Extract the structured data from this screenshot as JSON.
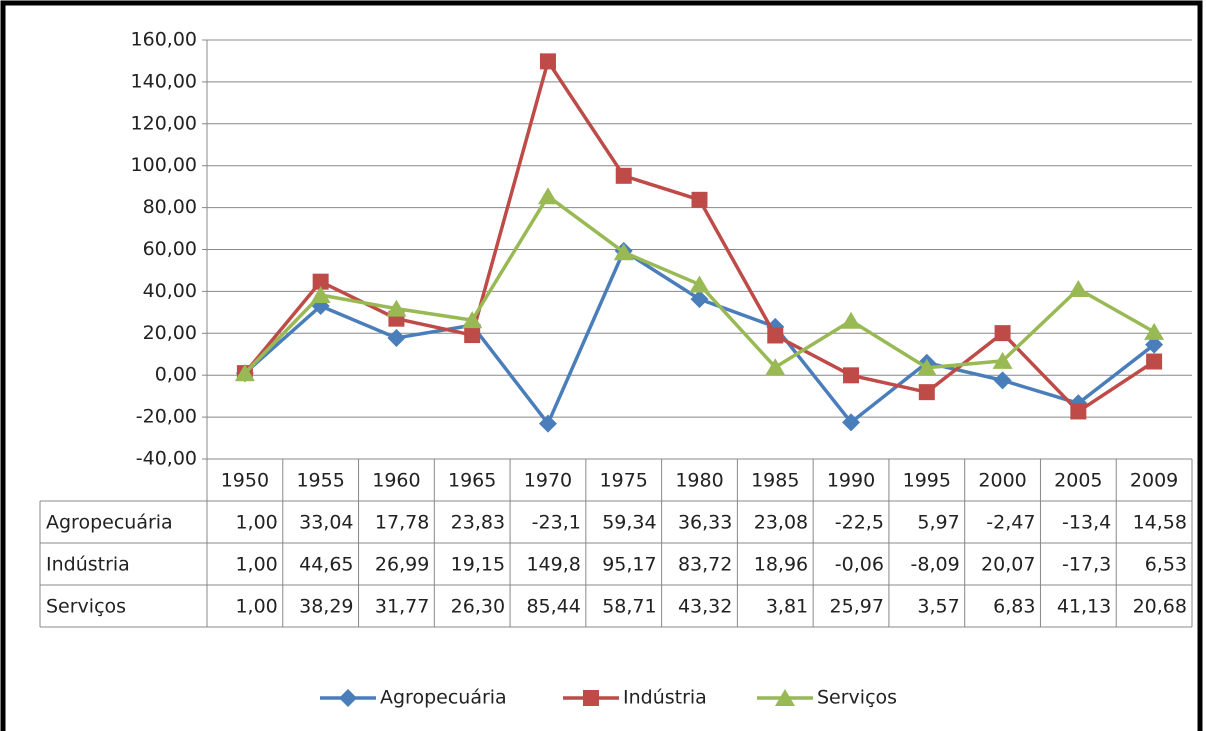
{
  "chart_data": {
    "type": "line",
    "categories": [
      "1950",
      "1955",
      "1960",
      "1965",
      "1970",
      "1975",
      "1980",
      "1985",
      "1990",
      "1995",
      "2000",
      "2005",
      "2009"
    ],
    "series": [
      {
        "name": "Agropecuária",
        "color": "#4a7ebb",
        "marker": "diamond",
        "values": [
          1.0,
          33.04,
          17.78,
          23.83,
          -23.1,
          59.34,
          36.33,
          23.08,
          -22.5,
          5.97,
          -2.47,
          -13.4,
          14.58
        ],
        "value_labels": [
          "1,00",
          "33,04",
          "17,78",
          "23,83",
          "-23,1",
          "59,34",
          "36,33",
          "23,08",
          "-22,5",
          "5,97",
          "-2,47",
          "-13,4",
          "14,58"
        ]
      },
      {
        "name": "Indústria",
        "color": "#be4b48",
        "marker": "square",
        "values": [
          1.0,
          44.65,
          26.99,
          19.15,
          149.8,
          95.17,
          83.72,
          18.96,
          -0.06,
          -8.09,
          20.07,
          -17.3,
          6.53
        ],
        "value_labels": [
          "1,00",
          "44,65",
          "26,99",
          "19,15",
          "149,8",
          "95,17",
          "83,72",
          "18,96",
          "-0,06",
          "-8,09",
          "20,07",
          "-17,3",
          "6,53"
        ]
      },
      {
        "name": "Serviços",
        "color": "#98b954",
        "marker": "triangle",
        "values": [
          1.0,
          38.29,
          31.77,
          26.3,
          85.44,
          58.71,
          43.32,
          3.81,
          25.97,
          3.57,
          6.83,
          41.13,
          20.68
        ],
        "value_labels": [
          "1,00",
          "38,29",
          "31,77",
          "26,30",
          "85,44",
          "58,71",
          "43,32",
          "3,81",
          "25,97",
          "3,57",
          "6,83",
          "41,13",
          "20,68"
        ]
      }
    ],
    "ylim": [
      -40,
      160
    ],
    "yticks": [
      {
        "value": -40,
        "label": "-40,00"
      },
      {
        "value": -20,
        "label": "-20,00"
      },
      {
        "value": 0,
        "label": "0,00"
      },
      {
        "value": 20,
        "label": "20,00"
      },
      {
        "value": 40,
        "label": "40,00"
      },
      {
        "value": 60,
        "label": "60,00"
      },
      {
        "value": 80,
        "label": "80,00"
      },
      {
        "value": 100,
        "label": "100,00"
      },
      {
        "value": 120,
        "label": "120,00"
      },
      {
        "value": 140,
        "label": "140,00"
      },
      {
        "value": 160,
        "label": "160,00"
      }
    ],
    "grid": true,
    "legend": "bottom"
  }
}
